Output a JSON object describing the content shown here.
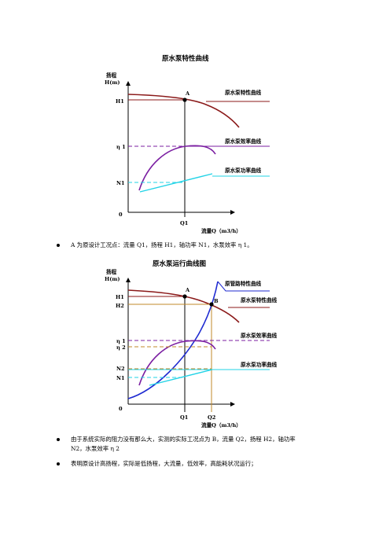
{
  "diagram1": {
    "title": "原水泵特性曲线",
    "y_axis_label_1": "扬程",
    "y_axis_label_2": "H(m)",
    "x_axis_label": "流量Q（m3/h）",
    "origin_label": "0",
    "point_label": "A",
    "tick_H1": "H1",
    "tick_eta1": "η 1",
    "tick_N1": "N1",
    "tick_Q1": "Q1",
    "legend_head": "原水泵特性曲线",
    "legend_eff": "原水泵效率曲线",
    "legend_power": "原水泵功率曲线"
  },
  "bullet1": "A 为原设计工况点：流量 Q1，扬程 H1，轴功率 N1，水泵效率 η 1。",
  "diagram2": {
    "title": "原水泵运行曲线图",
    "y_axis_label_1": "扬程",
    "y_axis_label_2": "H(m)",
    "x_axis_label": "流量Q（m3/h）",
    "origin_label": "0",
    "point_A": "A",
    "point_B": "B",
    "tick_H1": "H1",
    "tick_H2": "H2",
    "tick_eta1": "η 1",
    "tick_eta2": "η 2",
    "tick_N2": "N2",
    "tick_N1": "N1",
    "tick_Q1": "Q1",
    "tick_Q2": "Q2",
    "legend_pipe": "原管路特性曲线",
    "legend_head": "原水泵特性曲线",
    "legend_eff": "原水泵效率曲线",
    "legend_power": "原水泵功率曲线"
  },
  "bullet2_line1": "由于系统实际的阻力没有那么大，实测的实际工况点为 B，流量 Q2，扬程 H2，轴功率",
  "bullet2_line2": "N2，水泵效率 η 2",
  "bullet3": "表明原设计高扬程，实际是低扬程，大流量，低效率，高能耗状况运行；",
  "colors": {
    "head_curve": "#8b1a1a",
    "efficiency_curve": "#7b1fa2",
    "power_curve": "#22d3e6",
    "pipe_curve": "#1f2bd1",
    "q2_guide": "#c08a2a"
  }
}
